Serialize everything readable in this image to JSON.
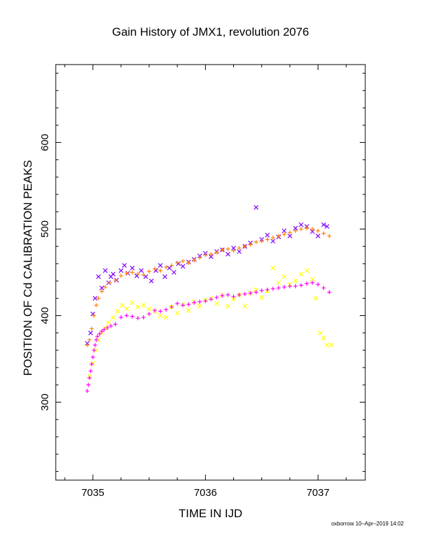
{
  "chart_data": {
    "type": "scatter",
    "title": "Gain History of JMX1, revolution 2076",
    "xlabel": "TIME IN IJD",
    "ylabel": "POSITION OF Cd CALIBRATION PEAKS",
    "xlim": [
      7034.67,
      7037.42
    ],
    "ylim": [
      210,
      690
    ],
    "xticks": [
      "7035",
      "7036",
      "7037"
    ],
    "yticks": [
      "300",
      "400",
      "500",
      "600"
    ],
    "grid": false,
    "series": [
      {
        "marker": "x",
        "color": "#7f00ff",
        "x": [
          7034.95,
          7034.98,
          7035.0,
          7035.02,
          7035.05,
          7035.08,
          7035.11,
          7035.14,
          7035.16,
          7035.18,
          7035.21,
          7035.25,
          7035.28,
          7035.31,
          7035.35,
          7035.39,
          7035.43,
          7035.47,
          7035.52,
          7035.56,
          7035.6,
          7035.64,
          7035.68,
          7035.72,
          7035.76,
          7035.8,
          7035.85,
          7035.9,
          7035.95,
          7036.0,
          7036.05,
          7036.1,
          7036.15,
          7036.2,
          7036.25,
          7036.3,
          7036.35,
          7036.4,
          7036.45,
          7036.5,
          7036.55,
          7036.6,
          7036.65,
          7036.7,
          7036.75,
          7036.8,
          7036.85,
          7036.9,
          7036.95,
          7037.0,
          7037.05,
          7037.08
        ],
        "y": [
          368,
          380,
          402,
          420,
          445,
          432,
          452,
          438,
          445,
          448,
          441,
          452,
          458,
          449,
          455,
          446,
          452,
          445,
          440,
          452,
          458,
          445,
          455,
          450,
          460,
          457,
          462,
          465,
          469,
          472,
          468,
          474,
          476,
          471,
          478,
          474,
          480,
          484,
          525,
          488,
          493,
          486,
          491,
          498,
          492,
          501,
          505,
          503,
          497,
          492,
          505,
          503
        ]
      },
      {
        "marker": "+",
        "color": "#ff7f00",
        "x": [
          7034.95,
          7034.97,
          7034.99,
          7035.01,
          7035.03,
          7035.05,
          7035.08,
          7035.11,
          7035.15,
          7035.2,
          7035.25,
          7035.3,
          7035.35,
          7035.4,
          7035.45,
          7035.5,
          7035.55,
          7035.6,
          7035.65,
          7035.7,
          7035.75,
          7035.8,
          7035.85,
          7035.9,
          7035.95,
          7036.0,
          7036.05,
          7036.1,
          7036.15,
          7036.2,
          7036.25,
          7036.3,
          7036.35,
          7036.4,
          7036.45,
          7036.5,
          7036.55,
          7036.6,
          7036.65,
          7036.7,
          7036.75,
          7036.8,
          7036.85,
          7036.9,
          7036.95,
          7037.0,
          7037.05,
          7037.1
        ],
        "y": [
          366,
          372,
          385,
          400,
          412,
          420,
          428,
          433,
          438,
          441,
          446,
          449,
          450,
          448,
          447,
          451,
          454,
          452,
          456,
          458,
          461,
          463,
          461,
          464,
          467,
          470,
          471,
          473,
          476,
          477,
          475,
          478,
          480,
          482,
          485,
          486,
          488,
          490,
          492,
          494,
          496,
          498,
          500,
          501,
          500,
          498,
          495,
          492
        ]
      },
      {
        "marker": "x",
        "color": "#ffff00",
        "x": [
          7034.97,
          7035.0,
          7035.03,
          7035.05,
          7035.08,
          7035.11,
          7035.14,
          7035.18,
          7035.22,
          7035.26,
          7035.3,
          7035.35,
          7035.4,
          7035.45,
          7035.5,
          7035.55,
          7035.6,
          7035.65,
          7035.7,
          7035.75,
          7035.8,
          7035.85,
          7035.9,
          7035.95,
          7036.0,
          7036.05,
          7036.1,
          7036.15,
          7036.2,
          7036.25,
          7036.3,
          7036.35,
          7036.4,
          7036.45,
          7036.5,
          7036.55,
          7036.6,
          7036.65,
          7036.7,
          7036.75,
          7036.8,
          7036.85,
          7036.9,
          7036.95,
          7036.98,
          7037.02,
          7037.05,
          7037.08,
          7037.12
        ],
        "y": [
          330,
          345,
          360,
          372,
          380,
          386,
          392,
          398,
          405,
          412,
          408,
          415,
          410,
          412,
          408,
          405,
          400,
          398,
          410,
          403,
          413,
          406,
          416,
          411,
          418,
          420,
          414,
          424,
          411,
          419,
          424,
          411,
          426,
          430,
          421,
          428,
          455,
          438,
          445,
          436,
          440,
          448,
          452,
          442,
          420,
          380,
          374,
          366,
          366
        ]
      },
      {
        "marker": "+",
        "color": "#ff00ff",
        "x": [
          7034.95,
          7034.96,
          7034.97,
          7034.98,
          7034.99,
          7035.0,
          7035.01,
          7035.02,
          7035.03,
          7035.04,
          7035.06,
          7035.08,
          7035.1,
          7035.13,
          7035.16,
          7035.2,
          7035.25,
          7035.3,
          7035.35,
          7035.4,
          7035.45,
          7035.5,
          7035.55,
          7035.6,
          7035.65,
          7035.7,
          7035.75,
          7035.8,
          7035.85,
          7035.9,
          7035.95,
          7036.0,
          7036.05,
          7036.1,
          7036.15,
          7036.2,
          7036.25,
          7036.3,
          7036.35,
          7036.4,
          7036.45,
          7036.5,
          7036.55,
          7036.6,
          7036.65,
          7036.7,
          7036.75,
          7036.8,
          7036.85,
          7036.9,
          7036.95,
          7037.0,
          7037.05,
          7037.1
        ],
        "y": [
          313,
          320,
          328,
          336,
          344,
          352,
          360,
          366,
          372,
          376,
          379,
          382,
          384,
          386,
          388,
          390,
          398,
          400,
          399,
          397,
          398,
          402,
          406,
          405,
          407,
          410,
          414,
          412,
          413,
          415,
          416,
          417,
          419,
          421,
          423,
          424,
          422,
          424,
          425,
          426,
          427,
          429,
          430,
          431,
          432,
          433,
          434,
          434,
          435,
          437,
          438,
          436,
          432,
          427
        ]
      }
    ]
  },
  "footer": {
    "text": "oxborrow 10–Apr–2019 14:02"
  }
}
